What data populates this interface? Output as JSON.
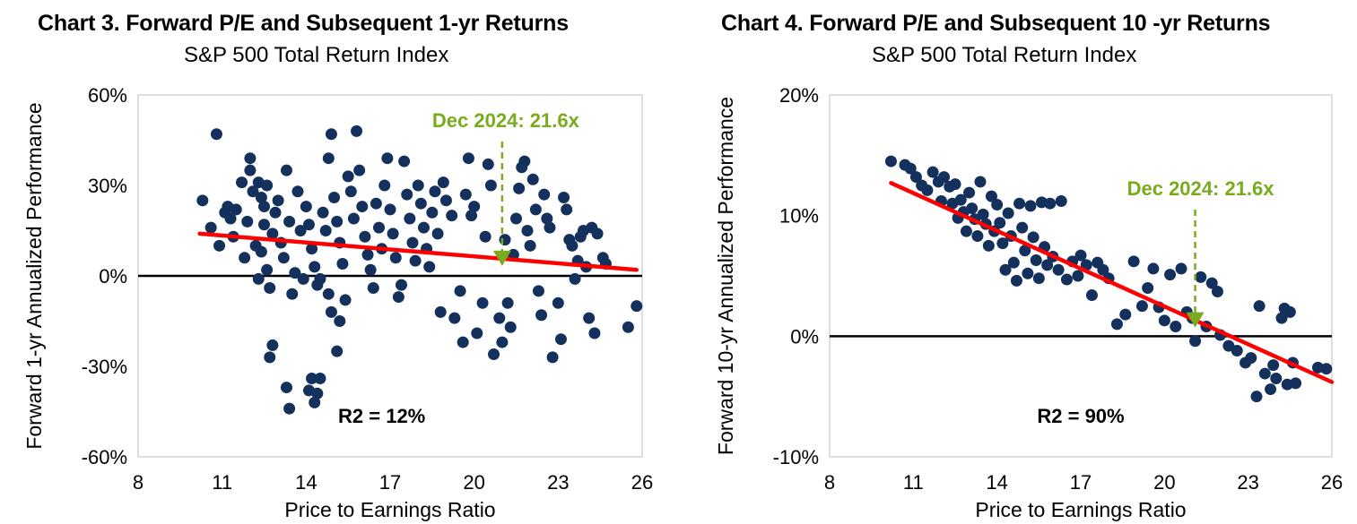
{
  "chart_data": [
    {
      "type": "scatter",
      "title": "Chart 3. Forward P/E and Subsequent 1-yr Returns",
      "subtitle": "S&P 500 Total Return Index",
      "xlabel": "Price to Earnings  Ratio",
      "ylabel": "Forward  1-yr Annualized  Performance",
      "xlim": [
        8,
        26
      ],
      "ylim": [
        -60,
        60
      ],
      "x_ticks": [
        "8",
        "11",
        "14",
        "17",
        "20",
        "23",
        "26"
      ],
      "y_ticks": [
        "60%",
        "30%",
        "0%",
        "-30%",
        "-60%"
      ],
      "point_color": "#14305c",
      "trend_color": "#ff0000",
      "annotation_color": "#7aab1e",
      "annotation": "Dec 2024: 21.6x",
      "annotation_x": 21.0,
      "r2_label": "R2 = 12%",
      "trendline": [
        [
          10.2,
          14
        ],
        [
          25.8,
          2
        ]
      ],
      "points": [
        [
          10.3,
          25
        ],
        [
          10.6,
          16
        ],
        [
          10.9,
          10
        ],
        [
          10.8,
          47
        ],
        [
          11.1,
          21
        ],
        [
          11.3,
          19
        ],
        [
          11.4,
          13
        ],
        [
          11.2,
          23
        ],
        [
          11.5,
          22
        ],
        [
          11.7,
          31
        ],
        [
          11.8,
          6
        ],
        [
          11.9,
          18
        ],
        [
          12.0,
          35
        ],
        [
          12.1,
          28
        ],
        [
          12.0,
          39
        ],
        [
          12.2,
          10
        ],
        [
          12.3,
          31
        ],
        [
          12.4,
          26
        ],
        [
          12.5,
          17
        ],
        [
          12.6,
          2
        ],
        [
          12.7,
          -4
        ],
        [
          12.8,
          14
        ],
        [
          12.9,
          21
        ],
        [
          12.7,
          -27
        ],
        [
          12.8,
          -23
        ],
        [
          12.6,
          30
        ],
        [
          12.5,
          23
        ],
        [
          12.4,
          8
        ],
        [
          12.3,
          -1
        ],
        [
          13.0,
          25
        ],
        [
          13.1,
          11
        ],
        [
          13.2,
          6
        ],
        [
          13.3,
          35
        ],
        [
          13.4,
          18
        ],
        [
          13.5,
          -6
        ],
        [
          13.6,
          1
        ],
        [
          13.3,
          -37
        ],
        [
          13.4,
          -44
        ],
        [
          13.7,
          28
        ],
        [
          13.8,
          15
        ],
        [
          13.9,
          -1
        ],
        [
          14.0,
          23
        ],
        [
          14.1,
          17
        ],
        [
          14.2,
          9
        ],
        [
          14.3,
          3
        ],
        [
          14.4,
          -3
        ],
        [
          14.5,
          -1
        ],
        [
          14.2,
          -34
        ],
        [
          14.4,
          -39
        ],
        [
          14.5,
          -34
        ],
        [
          14.3,
          -42
        ],
        [
          14.1,
          -38
        ],
        [
          14.6,
          21
        ],
        [
          14.7,
          15
        ],
        [
          14.8,
          39
        ],
        [
          14.9,
          47
        ],
        [
          15.0,
          26
        ],
        [
          15.1,
          18
        ],
        [
          15.2,
          11
        ],
        [
          15.3,
          4
        ],
        [
          15.4,
          -8
        ],
        [
          15.2,
          -15
        ],
        [
          15.1,
          -25
        ],
        [
          14.9,
          -12
        ],
        [
          14.8,
          -6
        ],
        [
          15.5,
          33
        ],
        [
          15.6,
          28
        ],
        [
          15.7,
          19
        ],
        [
          15.8,
          48
        ],
        [
          15.9,
          35
        ],
        [
          16.0,
          23
        ],
        [
          16.1,
          13
        ],
        [
          16.2,
          7
        ],
        [
          16.3,
          2
        ],
        [
          16.4,
          -4
        ],
        [
          16.5,
          24
        ],
        [
          16.6,
          16
        ],
        [
          16.7,
          9
        ],
        [
          16.8,
          30
        ],
        [
          16.9,
          39
        ],
        [
          17.0,
          22
        ],
        [
          17.1,
          14
        ],
        [
          17.2,
          6
        ],
        [
          17.3,
          -7
        ],
        [
          17.4,
          -3
        ],
        [
          17.5,
          38
        ],
        [
          17.6,
          27
        ],
        [
          17.7,
          19
        ],
        [
          17.8,
          11
        ],
        [
          17.9,
          5
        ],
        [
          18.0,
          30
        ],
        [
          18.1,
          24
        ],
        [
          18.2,
          16
        ],
        [
          18.3,
          9
        ],
        [
          18.4,
          3
        ],
        [
          18.5,
          21
        ],
        [
          18.6,
          28
        ],
        [
          18.7,
          14
        ],
        [
          18.8,
          -12
        ],
        [
          18.9,
          31
        ],
        [
          19.0,
          25
        ],
        [
          19.2,
          20
        ],
        [
          19.3,
          -14
        ],
        [
          19.5,
          -5
        ],
        [
          19.6,
          -22
        ],
        [
          19.7,
          27
        ],
        [
          19.8,
          39
        ],
        [
          19.9,
          20
        ],
        [
          20.0,
          23
        ],
        [
          20.1,
          -19
        ],
        [
          20.3,
          -9
        ],
        [
          20.4,
          13
        ],
        [
          20.5,
          37
        ],
        [
          20.6,
          30
        ],
        [
          20.7,
          -26
        ],
        [
          20.9,
          -14
        ],
        [
          21.0,
          -22
        ],
        [
          21.1,
          12
        ],
        [
          21.2,
          -9
        ],
        [
          21.3,
          -17
        ],
        [
          21.4,
          7
        ],
        [
          21.5,
          19
        ],
        [
          21.6,
          29
        ],
        [
          21.7,
          36
        ],
        [
          21.8,
          38
        ],
        [
          21.9,
          15
        ],
        [
          22.0,
          10
        ],
        [
          22.1,
          32
        ],
        [
          22.2,
          22
        ],
        [
          22.3,
          -5
        ],
        [
          22.4,
          -13
        ],
        [
          22.5,
          27
        ],
        [
          22.6,
          19
        ],
        [
          22.7,
          16
        ],
        [
          22.8,
          -27
        ],
        [
          23.0,
          -9
        ],
        [
          23.1,
          -21
        ],
        [
          23.2,
          26
        ],
        [
          23.3,
          22
        ],
        [
          23.4,
          12
        ],
        [
          23.5,
          10
        ],
        [
          23.6,
          -1
        ],
        [
          23.7,
          5
        ],
        [
          23.8,
          13
        ],
        [
          23.9,
          15
        ],
        [
          24.0,
          3
        ],
        [
          24.1,
          -14
        ],
        [
          24.2,
          16
        ],
        [
          24.3,
          -19
        ],
        [
          24.4,
          14
        ],
        [
          24.6,
          6
        ],
        [
          24.7,
          4
        ],
        [
          25.5,
          -17
        ],
        [
          25.8,
          -10
        ]
      ]
    },
    {
      "type": "scatter",
      "title": "Chart 4. Forward P/E and Subsequent 10 -yr Returns",
      "subtitle": "S&P 500 Total Return Index",
      "xlabel": "Price to Earnings  Ratio",
      "ylabel": "Forward  10-yr Annualized  Performance",
      "xlim": [
        8,
        26
      ],
      "ylim": [
        -10,
        20
      ],
      "x_ticks": [
        "8",
        "11",
        "14",
        "17",
        "20",
        "23",
        "26"
      ],
      "y_ticks": [
        "20%",
        "10%",
        "0%",
        "-10%"
      ],
      "point_color": "#14305c",
      "trend_color": "#ff0000",
      "annotation_color": "#7aab1e",
      "annotation": "Dec 2024: 21.6x",
      "annotation_x": 21.1,
      "r2_label": "R2 = 90%",
      "trendline": [
        [
          10.2,
          12.7
        ],
        [
          26.0,
          -3.8
        ]
      ],
      "points": [
        [
          10.2,
          14.5
        ],
        [
          10.7,
          14.2
        ],
        [
          10.9,
          13.9
        ],
        [
          11.1,
          13.2
        ],
        [
          11.3,
          12.5
        ],
        [
          11.5,
          12.1
        ],
        [
          11.7,
          13.6
        ],
        [
          11.9,
          12.8
        ],
        [
          12.0,
          11.2
        ],
        [
          12.1,
          13.2
        ],
        [
          12.3,
          12.4
        ],
        [
          12.4,
          11.0
        ],
        [
          12.5,
          12.6
        ],
        [
          12.6,
          9.8
        ],
        [
          12.7,
          11.3
        ],
        [
          12.8,
          10.3
        ],
        [
          12.9,
          8.7
        ],
        [
          13.0,
          11.9
        ],
        [
          13.1,
          10.6
        ],
        [
          13.2,
          9.7
        ],
        [
          13.3,
          8.3
        ],
        [
          13.4,
          12.8
        ],
        [
          13.5,
          10.1
        ],
        [
          13.6,
          9.3
        ],
        [
          13.7,
          7.5
        ],
        [
          13.8,
          11.6
        ],
        [
          13.9,
          8.7
        ],
        [
          14.0,
          10.9
        ],
        [
          14.1,
          9.4
        ],
        [
          14.2,
          7.7
        ],
        [
          14.3,
          5.5
        ],
        [
          14.4,
          10.2
        ],
        [
          14.5,
          8.3
        ],
        [
          14.6,
          6.1
        ],
        [
          14.7,
          4.6
        ],
        [
          14.8,
          11.0
        ],
        [
          14.9,
          9.0
        ],
        [
          15.0,
          7.1
        ],
        [
          15.1,
          5.2
        ],
        [
          15.2,
          10.8
        ],
        [
          15.3,
          8.2
        ],
        [
          15.4,
          6.3
        ],
        [
          15.5,
          4.8
        ],
        [
          15.6,
          11.1
        ],
        [
          15.7,
          7.4
        ],
        [
          15.8,
          5.9
        ],
        [
          15.9,
          11.0
        ],
        [
          16.0,
          6.6
        ],
        [
          16.2,
          5.5
        ],
        [
          16.3,
          11.2
        ],
        [
          16.5,
          4.7
        ],
        [
          16.7,
          6.2
        ],
        [
          16.9,
          5.0
        ],
        [
          17.0,
          6.7
        ],
        [
          17.2,
          5.9
        ],
        [
          17.4,
          3.4
        ],
        [
          17.6,
          6.1
        ],
        [
          17.8,
          5.5
        ],
        [
          18.0,
          4.8
        ],
        [
          18.3,
          1.0
        ],
        [
          18.6,
          1.8
        ],
        [
          18.9,
          6.2
        ],
        [
          19.2,
          2.5
        ],
        [
          19.4,
          4.0
        ],
        [
          19.6,
          5.6
        ],
        [
          19.8,
          2.4
        ],
        [
          20.0,
          1.3
        ],
        [
          20.2,
          5.1
        ],
        [
          20.4,
          0.8
        ],
        [
          20.6,
          5.6
        ],
        [
          20.8,
          2.0
        ],
        [
          21.0,
          1.5
        ],
        [
          21.1,
          -0.4
        ],
        [
          21.3,
          4.9
        ],
        [
          21.5,
          0.8
        ],
        [
          21.7,
          4.4
        ],
        [
          21.9,
          3.7
        ],
        [
          22.0,
          0.1
        ],
        [
          22.3,
          -0.8
        ],
        [
          22.6,
          -1.2
        ],
        [
          22.9,
          -2.2
        ],
        [
          23.1,
          -1.8
        ],
        [
          23.3,
          -5.0
        ],
        [
          23.4,
          2.5
        ],
        [
          23.6,
          -3.1
        ],
        [
          23.8,
          -4.4
        ],
        [
          23.9,
          -2.4
        ],
        [
          24.0,
          -3.5
        ],
        [
          24.2,
          1.5
        ],
        [
          24.3,
          2.3
        ],
        [
          24.4,
          -4.0
        ],
        [
          24.5,
          2.0
        ],
        [
          24.6,
          -2.2
        ],
        [
          24.7,
          -3.9
        ],
        [
          25.5,
          -2.6
        ],
        [
          25.8,
          -2.7
        ]
      ]
    }
  ]
}
